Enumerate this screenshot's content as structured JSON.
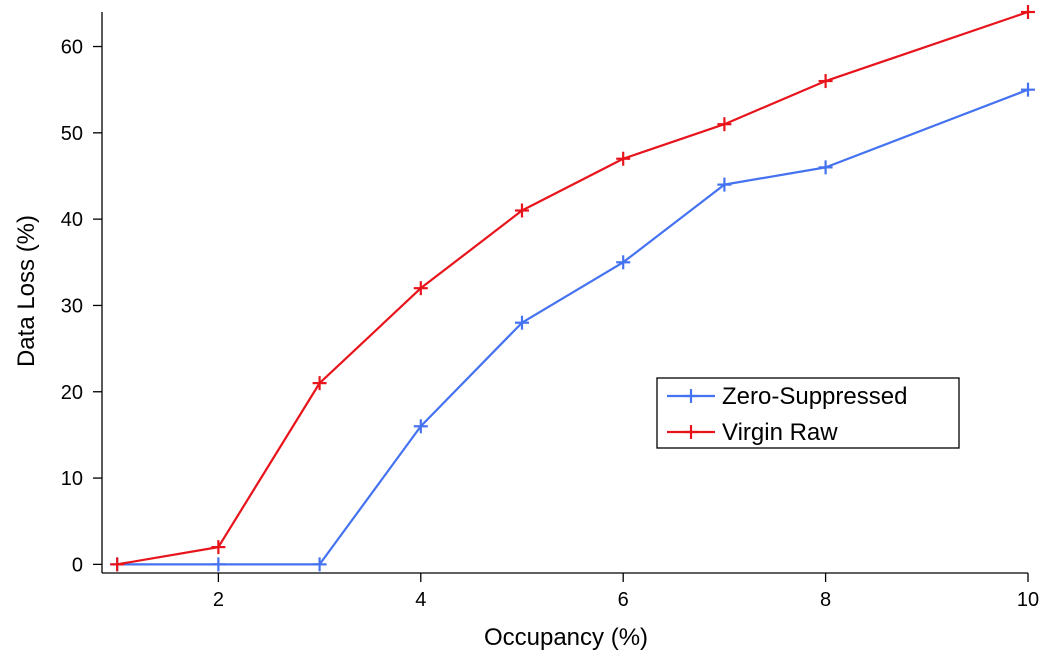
{
  "chart_data": {
    "type": "line",
    "title": "",
    "xlabel": "Occupancy (%)",
    "ylabel": "Data Loss (%)",
    "xlim": [
      0.85,
      10
    ],
    "ylim": [
      -1,
      64
    ],
    "xticks": [
      2,
      4,
      6,
      8,
      10
    ],
    "yticks": [
      0,
      10,
      20,
      30,
      40,
      50,
      60
    ],
    "grid": false,
    "legend_position": "center-right",
    "marker": "plus",
    "series": [
      {
        "name": "Zero-Suppressed",
        "color": "#4472f0",
        "x": [
          1,
          2,
          3,
          4,
          5,
          6,
          7,
          8,
          10
        ],
        "values": [
          0,
          0,
          0,
          16,
          28,
          35,
          44,
          46,
          55
        ]
      },
      {
        "name": "Virgin Raw",
        "color": "#e8141c",
        "x": [
          1,
          2,
          3,
          4,
          5,
          6,
          7,
          8,
          10
        ],
        "values": [
          0,
          2,
          21,
          32,
          41,
          47,
          51,
          56,
          64
        ]
      }
    ]
  }
}
